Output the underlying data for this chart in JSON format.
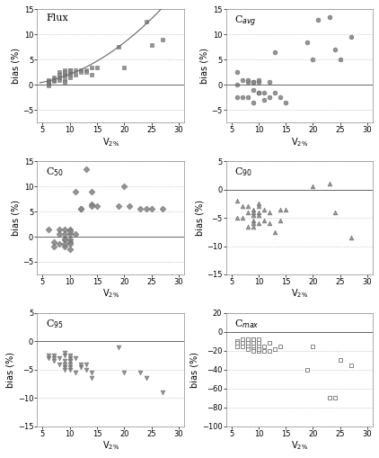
{
  "flux_x": [
    6,
    6,
    6,
    6,
    6,
    7,
    7,
    7,
    7,
    8,
    8,
    8,
    8,
    9,
    9,
    9,
    9,
    9,
    9,
    10,
    10,
    10,
    10,
    10,
    10,
    11,
    11,
    12,
    12,
    13,
    13,
    14,
    14,
    15,
    19,
    20,
    24,
    25,
    27
  ],
  "flux_y": [
    0.5,
    0.8,
    1.0,
    0.3,
    -0.2,
    1.0,
    1.5,
    0.8,
    1.2,
    2.5,
    1.0,
    2.0,
    1.5,
    2.0,
    3.0,
    2.5,
    1.8,
    1.0,
    0.5,
    2.5,
    3.0,
    2.0,
    1.5,
    2.5,
    3.0,
    2.0,
    3.0,
    3.0,
    2.5,
    3.0,
    2.5,
    3.5,
    2.0,
    3.5,
    7.5,
    3.5,
    12.5,
    8.0,
    9.0
  ],
  "cavg_x": [
    6,
    6,
    6,
    7,
    7,
    8,
    8,
    8,
    9,
    9,
    9,
    9,
    10,
    10,
    10,
    10,
    11,
    11,
    12,
    12,
    13,
    13,
    14,
    15,
    19,
    20,
    21,
    23,
    24,
    25,
    27
  ],
  "cavg_y": [
    2.5,
    0.0,
    -2.5,
    1.0,
    -2.5,
    0.5,
    -2.5,
    1.0,
    0.5,
    -1.0,
    0.5,
    -3.5,
    -1.5,
    0.5,
    -1.5,
    1.0,
    -3.0,
    -1.5,
    0.5,
    -2.5,
    6.5,
    -1.5,
    -2.5,
    -3.5,
    8.5,
    5.0,
    13.0,
    13.5,
    7.0,
    5.0,
    9.5
  ],
  "c50_x": [
    6,
    7,
    7,
    8,
    8,
    8,
    9,
    9,
    9,
    9,
    9,
    9,
    10,
    10,
    10,
    10,
    10,
    10,
    10,
    11,
    11,
    12,
    12,
    13,
    14,
    14,
    14,
    15,
    19,
    20,
    21,
    23,
    24,
    25,
    27
  ],
  "c50_y": [
    1.5,
    -2.0,
    -1.0,
    1.5,
    0.5,
    -1.5,
    1.5,
    0.5,
    -0.5,
    -2.0,
    -0.5,
    -1.5,
    1.5,
    -0.5,
    0.5,
    -1.0,
    1.0,
    -2.5,
    -1.5,
    9.0,
    0.5,
    5.5,
    5.5,
    13.5,
    6.5,
    6.0,
    9.0,
    6.0,
    6.0,
    10.0,
    6.0,
    5.5,
    5.5,
    5.5,
    5.5
  ],
  "c90_x": [
    6,
    6,
    7,
    7,
    8,
    8,
    8,
    9,
    9,
    9,
    9,
    9,
    9,
    10,
    10,
    10,
    10,
    10,
    11,
    11,
    12,
    12,
    13,
    14,
    14,
    15,
    20,
    23,
    24,
    27
  ],
  "c90_y": [
    -2.0,
    -5.0,
    -3.0,
    -5.0,
    -4.0,
    -6.5,
    -3.0,
    -3.5,
    -5.5,
    -4.5,
    -6.5,
    -4.0,
    -6.0,
    -3.0,
    -4.5,
    -2.5,
    -4.0,
    -6.0,
    -5.5,
    -3.5,
    -4.0,
    -6.0,
    -7.5,
    -5.5,
    -3.5,
    -3.5,
    0.5,
    1.0,
    -4.0,
    -8.5
  ],
  "c95_x": [
    6,
    6,
    7,
    7,
    7,
    8,
    8,
    9,
    9,
    9,
    9,
    9,
    9,
    10,
    10,
    10,
    10,
    10,
    10,
    10,
    11,
    11,
    12,
    12,
    13,
    13,
    14,
    14,
    19,
    20,
    23,
    24,
    27
  ],
  "c95_y": [
    -3.0,
    -2.5,
    -2.5,
    -3.0,
    -3.5,
    -4.0,
    -3.0,
    -3.5,
    -4.5,
    -2.5,
    -4.0,
    -2.0,
    -5.0,
    -3.0,
    -5.0,
    -3.5,
    -4.5,
    -4.0,
    -2.5,
    -3.5,
    -3.0,
    -5.5,
    -4.5,
    -4.0,
    -5.0,
    -4.0,
    -5.5,
    -6.5,
    -1.0,
    -5.5,
    -5.5,
    -6.5,
    -9.0
  ],
  "cmax_x": [
    6,
    6,
    6,
    7,
    7,
    7,
    7,
    8,
    8,
    8,
    8,
    8,
    9,
    9,
    9,
    9,
    9,
    9,
    9,
    10,
    10,
    10,
    10,
    10,
    10,
    11,
    11,
    12,
    12,
    13,
    14,
    19,
    20,
    23,
    24,
    25,
    27
  ],
  "cmax_y": [
    -15,
    -10,
    -12,
    -10,
    -12,
    -8,
    -15,
    -10,
    -12,
    -15,
    -18,
    -8,
    -15,
    -10,
    -8,
    -18,
    -12,
    -20,
    -8,
    -10,
    -15,
    -12,
    -20,
    -8,
    -18,
    -15,
    -20,
    -12,
    -20,
    -18,
    -15,
    -40,
    -15,
    -70,
    -70,
    -30,
    -35
  ],
  "title_flux": "Flux",
  "title_cavg": "C$_{avg}$",
  "title_c50": "C$_{50}$",
  "title_c90": "C$_{90}$",
  "title_c95": "C$_{95}$",
  "title_cmax": "C$_{max}$",
  "xlabel": "V$_{2\\%}$",
  "ylabel": "bias (%)",
  "xlim": [
    4,
    31
  ],
  "flux_ylim": [
    -7.5,
    15
  ],
  "cavg_ylim": [
    -7.5,
    15
  ],
  "c50_ylim": [
    -7.5,
    15
  ],
  "c90_ylim": [
    -15,
    5
  ],
  "c95_ylim": [
    -15,
    5
  ],
  "cmax_ylim": [
    -100,
    20
  ],
  "flux_yticks": [
    -5,
    0,
    5,
    10,
    15
  ],
  "cavg_yticks": [
    -5,
    0,
    5,
    10,
    15
  ],
  "c50_yticks": [
    -5,
    0,
    5,
    10,
    15
  ],
  "c90_yticks": [
    -15,
    -10,
    -5,
    0,
    5
  ],
  "c95_yticks": [
    -15,
    -10,
    -5,
    0,
    5
  ],
  "cmax_yticks": [
    -100,
    -80,
    -60,
    -40,
    -20,
    0,
    20
  ],
  "marker_color": "#888888",
  "marker_edge": "#666666",
  "line_color": "#888888",
  "bg_color": "#ffffff",
  "grid_color": "#aaaaaa"
}
